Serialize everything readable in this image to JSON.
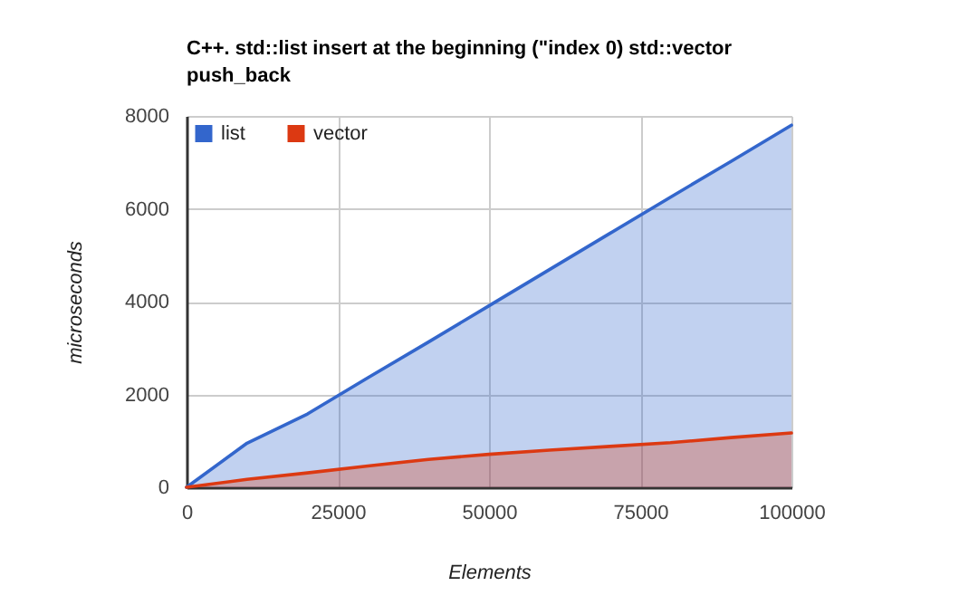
{
  "chart_data": {
    "type": "area",
    "title": "C++. std::list insert at the beginning (\"index 0) std::vector push_back",
    "xlabel": "Elements",
    "ylabel": "microseconds",
    "x": [
      0,
      10000,
      20000,
      30000,
      40000,
      50000,
      60000,
      70000,
      80000,
      90000,
      100000
    ],
    "series": [
      {
        "name": "list",
        "color": "#3366cc",
        "values": [
          0,
          950,
          1580,
          2360,
          3130,
          3910,
          4690,
          5470,
          6250,
          7020,
          7800
        ]
      },
      {
        "name": "vector",
        "color": "#dc3912",
        "values": [
          0,
          170,
          310,
          460,
          600,
          710,
          800,
          880,
          960,
          1070,
          1170
        ]
      }
    ],
    "xlim": [
      0,
      100000
    ],
    "ylim": [
      0,
      8000
    ],
    "xticks": [
      0,
      25000,
      50000,
      75000,
      100000
    ],
    "yticks": [
      0,
      2000,
      4000,
      6000,
      8000
    ],
    "grid": true,
    "legend": "top left",
    "line_style": "solid"
  }
}
